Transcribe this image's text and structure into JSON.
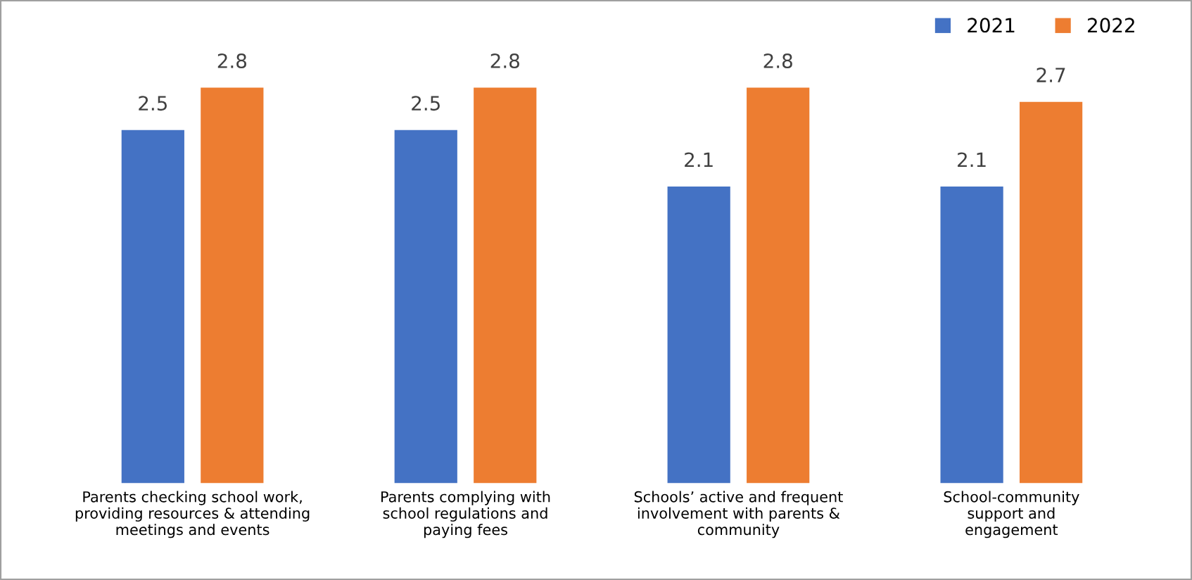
{
  "chart_data": {
    "type": "bar",
    "categories": [
      "Parents checking school work,\nproviding resources & attending\nmeetings and events",
      "Parents complying with\nschool regulations and\npaying fees",
      "Schools’ active and frequent\ninvolvement with parents &\ncommunity",
      "School-community\nsupport and\nengagement"
    ],
    "series": [
      {
        "name": "2021",
        "color": "#4472c4",
        "values": [
          2.5,
          2.5,
          2.1,
          2.1
        ]
      },
      {
        "name": "2022",
        "color": "#ed7d31",
        "values": [
          2.8,
          2.8,
          2.8,
          2.7
        ]
      }
    ],
    "data_labels": true,
    "legend": "top right"
  }
}
